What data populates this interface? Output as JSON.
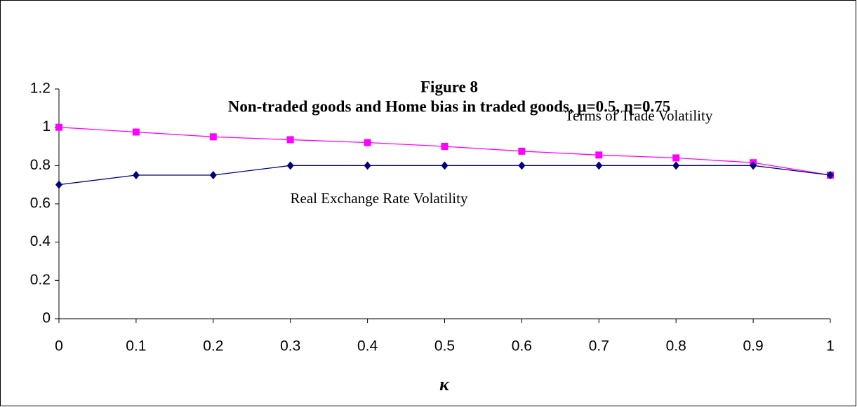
{
  "chart_data": {
    "type": "line",
    "title": "Figure 8",
    "subtitle": "Non-traded goods and Home bias in traded goods, μ=0.5, η=0.75",
    "x_label": "κ",
    "x": [
      0,
      0.1,
      0.2,
      0.3,
      0.4,
      0.5,
      0.6,
      0.7,
      0.8,
      0.9,
      1
    ],
    "series": [
      {
        "name": "Terms of Trade Volatility",
        "color": "#ff00ff",
        "marker": "square",
        "values": [
          1,
          0.975,
          0.95,
          0.935,
          0.92,
          0.9,
          0.875,
          0.855,
          0.84,
          0.815,
          0.75
        ]
      },
      {
        "name": "Real Exchange Rate Volatility",
        "color": "#000080",
        "marker": "diamond",
        "values": [
          0.7,
          0.75,
          0.75,
          0.8,
          0.8,
          0.8,
          0.8,
          0.8,
          0.8,
          0.8,
          0.75
        ]
      }
    ],
    "xlim": [
      0,
      1
    ],
    "xticks": [
      0,
      0.1,
      0.2,
      0.3,
      0.4,
      0.5,
      0.6,
      0.7,
      0.8,
      0.9,
      1
    ],
    "ylim": [
      0,
      1.2
    ],
    "yticks": [
      0,
      0.2,
      0.4,
      0.6,
      0.8,
      1,
      1.2
    ],
    "grid": false
  }
}
